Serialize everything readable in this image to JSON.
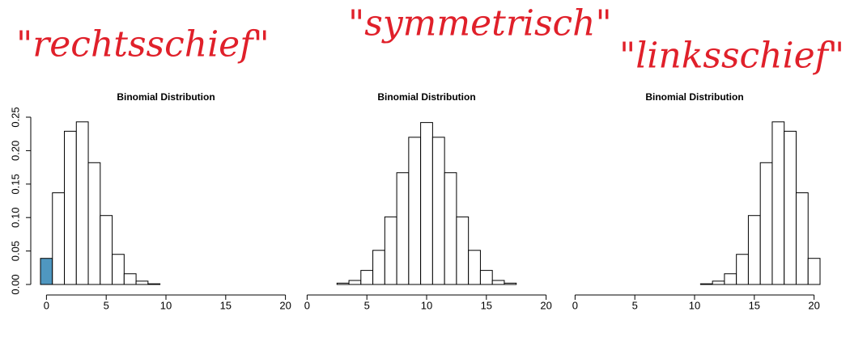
{
  "annotations": [
    "\"rechtsschief\"",
    "\"symmetrisch\"",
    "\"linksschief\""
  ],
  "chart_data": [
    {
      "type": "bar",
      "title": "Binomial Distribution",
      "x": [
        0,
        1,
        2,
        3,
        4,
        5,
        6,
        7,
        8,
        9,
        10,
        11,
        12,
        13,
        14,
        15,
        16,
        17,
        18,
        19,
        20
      ],
      "values": [
        0.039,
        0.137,
        0.229,
        0.243,
        0.182,
        0.103,
        0.045,
        0.016,
        0.005,
        0.001,
        0,
        0,
        0,
        0,
        0,
        0,
        0,
        0,
        0,
        0,
        0
      ],
      "color": "#ffffff",
      "highlight_color": "#4f97c0",
      "highlight_index": 0,
      "xlim": [
        -0.5,
        20.5
      ],
      "xticks": [
        0,
        5,
        10,
        15,
        20
      ],
      "ylim": [
        0,
        0.25
      ],
      "yticks": [
        {
          "value": 0,
          "label": "0.00"
        },
        {
          "value": 0.05,
          "label": "0.05"
        },
        {
          "value": 0.1,
          "label": "0.10"
        },
        {
          "value": 0.15,
          "label": "0.15"
        },
        {
          "value": 0.2,
          "label": "0.20"
        },
        {
          "value": 0.25,
          "label": "0.25"
        }
      ]
    },
    {
      "type": "bar",
      "title": "Binomial Distribution",
      "x": [
        0,
        1,
        2,
        3,
        4,
        5,
        6,
        7,
        8,
        9,
        10,
        11,
        12,
        13,
        14,
        15,
        16,
        17,
        18,
        19,
        20
      ],
      "values": [
        0,
        0,
        0,
        0.002,
        0.006,
        0.021,
        0.051,
        0.101,
        0.167,
        0.22,
        0.242,
        0.22,
        0.167,
        0.101,
        0.051,
        0.021,
        0.006,
        0.002,
        0,
        0,
        0
      ],
      "color": "#ffffff",
      "xlim": [
        -0.5,
        20.5
      ],
      "xticks": [
        0,
        5,
        10,
        15,
        20
      ],
      "ylim": [
        0,
        0.25
      ]
    },
    {
      "type": "bar",
      "title": "Binomial Distribution",
      "x": [
        0,
        1,
        2,
        3,
        4,
        5,
        6,
        7,
        8,
        9,
        10,
        11,
        12,
        13,
        14,
        15,
        16,
        17,
        18,
        19,
        20
      ],
      "values": [
        0,
        0,
        0,
        0,
        0,
        0,
        0,
        0,
        0,
        0,
        0,
        0.001,
        0.005,
        0.016,
        0.045,
        0.103,
        0.182,
        0.243,
        0.229,
        0.137,
        0.039
      ],
      "color": "#ffffff",
      "xlim": [
        -0.5,
        20.5
      ],
      "xticks": [
        0,
        5,
        10,
        15,
        20
      ],
      "ylim": [
        0,
        0.25
      ]
    }
  ]
}
